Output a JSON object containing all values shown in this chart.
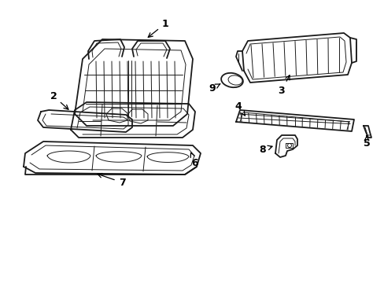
{
  "background_color": "#ffffff",
  "line_color": "#1a1a1a",
  "label_color": "#000000",
  "figsize": [
    4.89,
    3.6
  ],
  "dpi": 100,
  "lw_main": 1.3,
  "lw_thin": 0.7,
  "lw_inner": 0.8,
  "font_size": 9
}
